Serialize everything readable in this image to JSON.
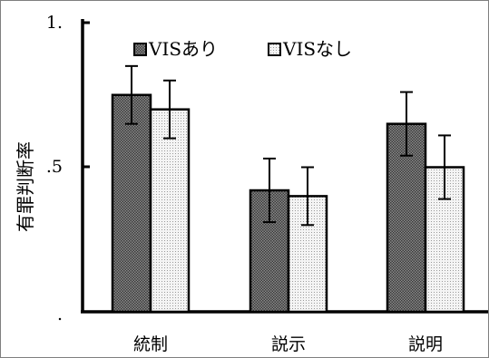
{
  "chart_data": {
    "type": "bar",
    "title": "",
    "xlabel": "",
    "ylabel": "有罪判断率",
    "categories": [
      "統制",
      "説示",
      "説明"
    ],
    "ylim": [
      0,
      1
    ],
    "yticks": [
      {
        "value": 1,
        "label": "1."
      },
      {
        "value": 0.5,
        "label": ".5"
      },
      {
        "value": 0,
        "label": "."
      }
    ],
    "grid": false,
    "legend_position": "top",
    "series": [
      {
        "name": "VISあり",
        "values": [
          0.75,
          0.42,
          0.65
        ],
        "errors": [
          0.1,
          0.11,
          0.11
        ],
        "pattern": "dark-dots",
        "color": "#5a5a5a"
      },
      {
        "name": "VISなし",
        "values": [
          0.7,
          0.4,
          0.5
        ],
        "errors": [
          0.1,
          0.1,
          0.11
        ],
        "pattern": "light-dots",
        "color": "#e6e6e6"
      }
    ]
  }
}
